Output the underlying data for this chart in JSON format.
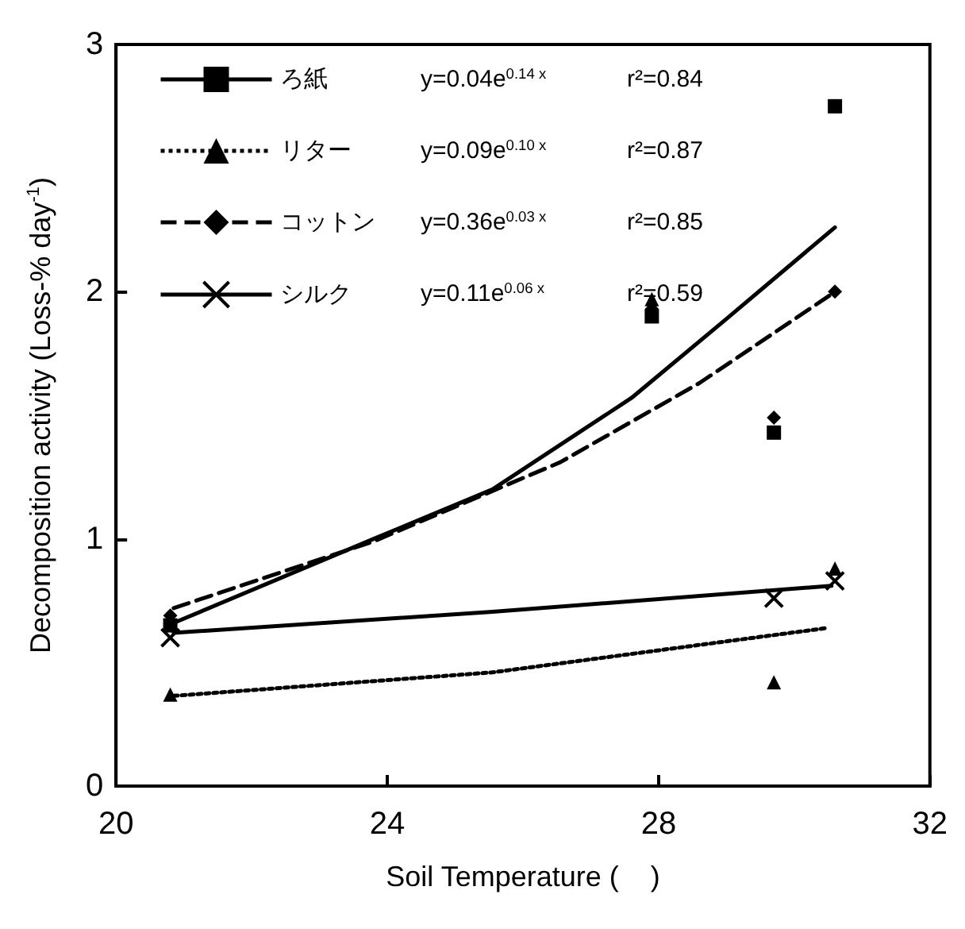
{
  "chart_data": {
    "type": "scatter",
    "xlabel": "Soil Temperature (    )",
    "ylabel": "Decomposition activity (Loss-% day$^{-1}$)",
    "xlim": [
      20,
      32
    ],
    "xticks": [
      20,
      24,
      28,
      32
    ],
    "ylim": [
      0,
      3
    ],
    "yticks": [
      0,
      1,
      2,
      3
    ],
    "grid": false,
    "legend": "top left",
    "series": [
      {
        "name": "ろ紙",
        "type": "scatter",
        "marker": "square",
        "color": "#000000",
        "x": [
          20.8,
          27.9,
          29.7,
          30.6
        ],
        "values": [
          0.65,
          1.9,
          1.43,
          2.75
        ]
      },
      {
        "name": "リター",
        "type": "scatter",
        "marker": "triangle",
        "color": "#000000",
        "x": [
          20.8,
          27.9,
          29.7,
          30.6
        ],
        "values": [
          0.37,
          1.97,
          0.42,
          0.88
        ]
      },
      {
        "name": "コットン",
        "type": "scatter",
        "marker": "diamond",
        "color": "#000000",
        "x": [
          20.8,
          27.9,
          29.7,
          30.6
        ],
        "values": [
          0.69,
          1.93,
          1.49,
          2.0
        ]
      },
      {
        "name": "シルク",
        "type": "scatter",
        "marker": "cross",
        "color": "#000000",
        "x": [
          20.8,
          29.7,
          30.6
        ],
        "values": [
          0.6,
          0.76,
          0.83
        ]
      },
      {
        "type": "line",
        "line_style": "solid",
        "color": "#000000",
        "x": [
          20.85,
          23.8,
          25.55,
          27.6,
          29.0,
          30.6
        ],
        "values": [
          0.66,
          1.0,
          1.2,
          1.57,
          1.89,
          2.26
        ]
      },
      {
        "type": "line",
        "line_style": "dotted",
        "color": "#000000",
        "x": [
          20.85,
          25.55,
          30.5
        ],
        "values": [
          0.365,
          0.46,
          0.64
        ]
      },
      {
        "type": "line",
        "line_style": "dashed",
        "color": "#000000",
        "x": [
          20.85,
          23.8,
          26.55,
          28.6,
          30.55
        ],
        "values": [
          0.72,
          0.99,
          1.31,
          1.63,
          1.99
        ]
      },
      {
        "type": "line",
        "line_style": "solid",
        "color": "#000000",
        "x": [
          20.85,
          25.55,
          30.55
        ],
        "values": [
          0.62,
          0.705,
          0.81
        ]
      }
    ],
    "annotations": [
      "y=0.04e$^{0.14 x}$",
      "r²=0.84",
      "y=0.09e$^{0.10 x}$",
      "r²=0.87",
      "y=0.36e$^{0.03 x}$",
      "r²=0.85",
      "y=0.11e$^{0.06 x}$",
      "r²=0.59"
    ]
  }
}
